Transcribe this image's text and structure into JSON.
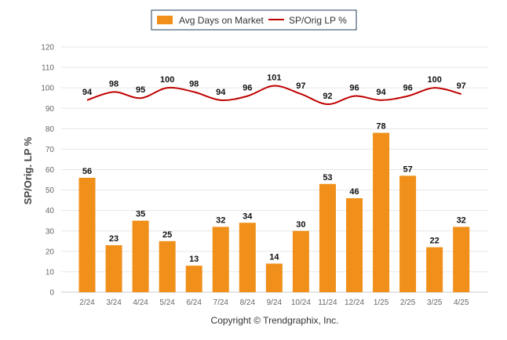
{
  "chart_data": {
    "type": "bar",
    "categories": [
      "2/24",
      "3/24",
      "4/24",
      "5/24",
      "6/24",
      "7/24",
      "8/24",
      "9/24",
      "10/24",
      "11/24",
      "12/24",
      "1/25",
      "2/25",
      "3/25",
      "4/25"
    ],
    "series": [
      {
        "name": "Avg Days on Market",
        "type": "bar",
        "color": "#f0901a",
        "values": [
          56,
          23,
          35,
          25,
          13,
          32,
          34,
          14,
          30,
          53,
          46,
          78,
          57,
          22,
          32
        ]
      },
      {
        "name": "SP/Orig LP %",
        "type": "line",
        "color": "#c00000",
        "values": [
          94,
          98,
          95,
          100,
          98,
          94,
          96,
          101,
          97,
          92,
          96,
          94,
          96,
          100,
          97
        ]
      }
    ],
    "ylabel": "SP/Orig. LP %",
    "ylim": [
      0,
      120
    ],
    "yticks": [
      0,
      10,
      20,
      30,
      40,
      50,
      60,
      70,
      80,
      90,
      100,
      110,
      120
    ],
    "grid": true,
    "legend": "top-center"
  },
  "footer": {
    "copyright": "Copyright © Trendgraphix, Inc."
  }
}
